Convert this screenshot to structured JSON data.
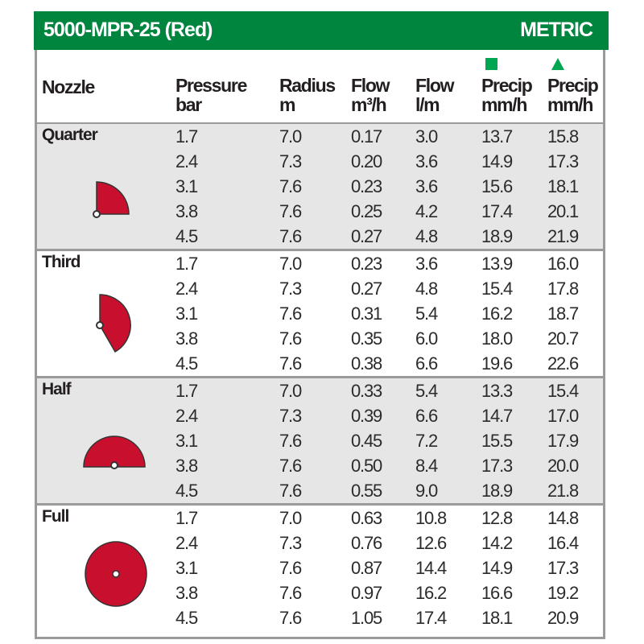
{
  "title": "5000-MPR-25 (Red)",
  "units": "METRIC",
  "colors": {
    "header_green": "#00853f",
    "nozzle_red": "#c8102e",
    "square_marker": "#00a651",
    "triangle_marker": "#00a651"
  },
  "columns": [
    {
      "line1": "Nozzle",
      "line2": ""
    },
    {
      "line1": "Pressure",
      "line2": "bar"
    },
    {
      "line1": "Radius",
      "line2": "m"
    },
    {
      "line1": "Flow",
      "line2": "m³/h"
    },
    {
      "line1": "Flow",
      "line2": "l/m"
    },
    {
      "line1": "Precip",
      "line2": "mm/h",
      "marker": "square-icon"
    },
    {
      "line1": "Precip",
      "line2": "mm/h",
      "marker": "triangle-icon"
    }
  ],
  "sections": [
    {
      "nozzle": "Quarter",
      "icon": "quarter-arc-icon",
      "rows": [
        [
          "1.7",
          "7.0",
          "0.17",
          "3.0",
          "13.7",
          "15.8"
        ],
        [
          "2.4",
          "7.3",
          "0.20",
          "3.6",
          "14.9",
          "17.3"
        ],
        [
          "3.1",
          "7.6",
          "0.23",
          "3.6",
          "15.6",
          "18.1"
        ],
        [
          "3.8",
          "7.6",
          "0.25",
          "4.2",
          "17.4",
          "20.1"
        ],
        [
          "4.5",
          "7.6",
          "0.27",
          "4.8",
          "18.9",
          "21.9"
        ]
      ]
    },
    {
      "nozzle": "Third",
      "icon": "third-arc-icon",
      "rows": [
        [
          "1.7",
          "7.0",
          "0.23",
          "3.6",
          "13.9",
          "16.0"
        ],
        [
          "2.4",
          "7.3",
          "0.27",
          "4.8",
          "15.4",
          "17.8"
        ],
        [
          "3.1",
          "7.6",
          "0.31",
          "5.4",
          "16.2",
          "18.7"
        ],
        [
          "3.8",
          "7.6",
          "0.35",
          "6.0",
          "18.0",
          "20.7"
        ],
        [
          "4.5",
          "7.6",
          "0.38",
          "6.6",
          "19.6",
          "22.6"
        ]
      ]
    },
    {
      "nozzle": "Half",
      "icon": "half-arc-icon",
      "rows": [
        [
          "1.7",
          "7.0",
          "0.33",
          "5.4",
          "13.3",
          "15.4"
        ],
        [
          "2.4",
          "7.3",
          "0.39",
          "6.6",
          "14.7",
          "17.0"
        ],
        [
          "3.1",
          "7.6",
          "0.45",
          "7.2",
          "15.5",
          "17.9"
        ],
        [
          "3.8",
          "7.6",
          "0.50",
          "8.4",
          "17.3",
          "20.0"
        ],
        [
          "4.5",
          "7.6",
          "0.55",
          "9.0",
          "18.9",
          "21.8"
        ]
      ]
    },
    {
      "nozzle": "Full",
      "icon": "full-circle-icon",
      "rows": [
        [
          "1.7",
          "7.0",
          "0.63",
          "10.8",
          "12.8",
          "14.8"
        ],
        [
          "2.4",
          "7.3",
          "0.76",
          "12.6",
          "14.2",
          "16.4"
        ],
        [
          "3.1",
          "7.6",
          "0.87",
          "14.4",
          "14.9",
          "17.3"
        ],
        [
          "3.8",
          "7.6",
          "0.97",
          "16.2",
          "16.6",
          "19.2"
        ],
        [
          "4.5",
          "7.6",
          "1.05",
          "17.4",
          "18.1",
          "20.9"
        ]
      ]
    }
  ]
}
